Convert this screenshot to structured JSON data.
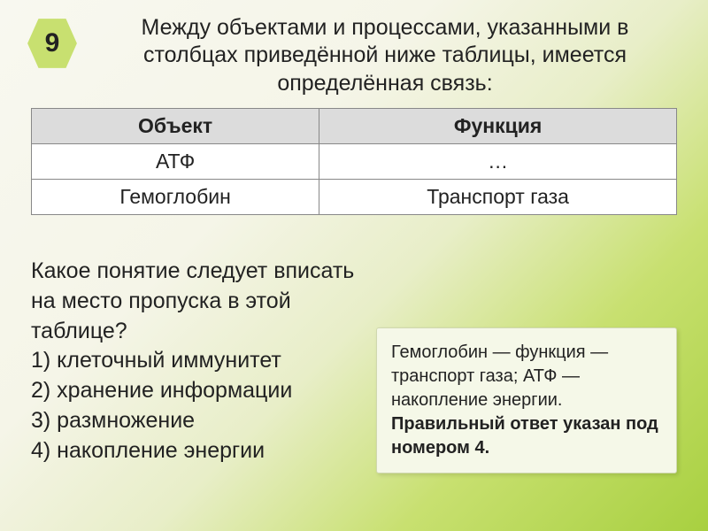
{
  "badge": {
    "number": "9"
  },
  "heading": "Между объектами и процессами, указанными в столбцах приведённой ниже таблицы, имеется определённая связь:",
  "table": {
    "headers": [
      "Объект",
      "Функция"
    ],
    "rows": [
      [
        "АТФ",
        "…"
      ],
      [
        "Гемоглобин",
        "Транспорт газа"
      ]
    ],
    "header_bg": "#dcdcdc",
    "cell_bg": "#ffffff",
    "border_color": "#888888",
    "font_size": 23
  },
  "question": {
    "prompt": "Какое понятие следует вписать на место пропуска в этой таблице?",
    "options": [
      "1) клеточный иммунитет",
      "2) хранение информации",
      "3) размножение",
      "4) накопление энергии"
    ]
  },
  "answer": {
    "text": "Гемоглобин — функция — транспорт газа; АТФ — накопление энергии.",
    "bold": "Правильный ответ указан под номером 4.",
    "box_bg": "#f5f8e8",
    "box_border": "#d0d8b0"
  },
  "colors": {
    "bg_gradient_start": "#f8f8f0",
    "bg_gradient_end": "#a8d040",
    "badge_bg": "#c8e070",
    "text": "#222222"
  }
}
